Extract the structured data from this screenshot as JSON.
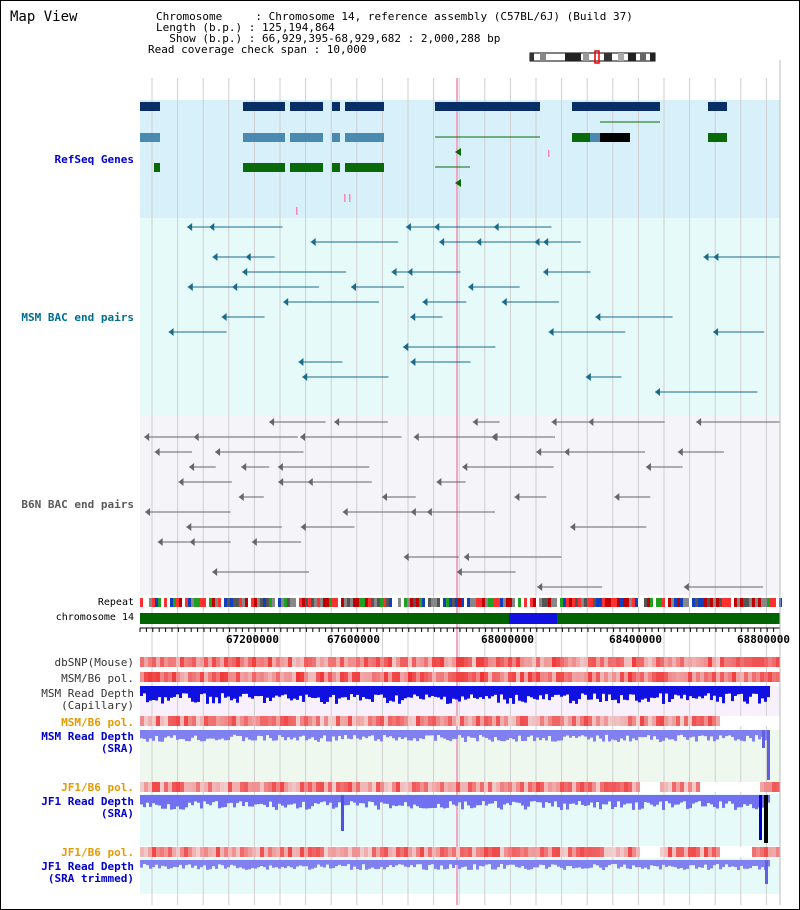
{
  "header": {
    "title": "Map View",
    "chromosome_line": "Chromosome     : Chromosome 14, reference assembly (C57BL/6J) (Build 37)",
    "length_line": "Length (b.p.) : 125,194,864",
    "show_line": "  Show (b.p.) : 66,929,395-68,929,682 : 2,000,288 bp",
    "coverage_line": "Read coverage check span : 10,000"
  },
  "tracks": {
    "refseq": "RefSeq Genes",
    "msm_bac": "MSM BAC end pairs",
    "b6n_bac": "B6N BAC end pairs",
    "repeat": "Repeat",
    "chromosome": "chromosome 14",
    "dbsnp": "dbSNP(Mouse)",
    "msm_b6_pol_1": "MSM/B6 pol.",
    "msm_read_depth_cap": "MSM Read Depth\n(Capillary)",
    "msm_b6_pol_2": "MSM/B6 pol.",
    "msm_read_depth_sra": "MSM Read Depth\n(SRA)",
    "jf1_b6_pol_1": "JF1/B6 pol.",
    "jf1_read_depth_sra": "JF1 Read Depth\n(SRA)",
    "jf1_b6_pol_2": "JF1/B6 pol.",
    "jf1_read_depth_trim": "JF1 Read Depth\n(SRA trimmed)"
  },
  "axis": {
    "ticks": [
      "67200000",
      "67600000",
      "68000000",
      "68400000",
      "68800000"
    ]
  },
  "colors": {
    "refseq_bg": "#d8f0fa",
    "msm_bg": "#e6fafa",
    "b6n_bg": "#f2f2f8",
    "label_blue": "#0000cc",
    "label_teal": "#006f8f",
    "label_orange": "#e69a00",
    "gene_dark": "#0a2e66",
    "gene_mid": "#4a8ab0",
    "gene_green": "#0a6a0a",
    "chromosome_green": "#006400"
  }
}
